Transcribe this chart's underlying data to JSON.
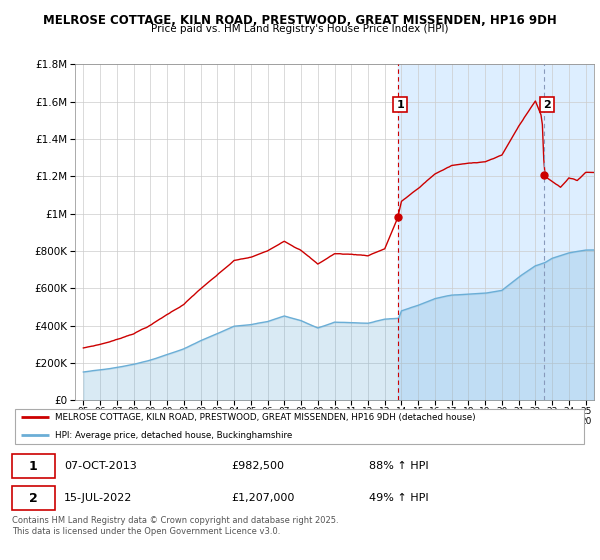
{
  "title1": "MELROSE COTTAGE, KILN ROAD, PRESTWOOD, GREAT MISSENDEN, HP16 9DH",
  "title2": "Price paid vs. HM Land Registry's House Price Index (HPI)",
  "hpi_color": "#6baed6",
  "price_color": "#cc0000",
  "vline1_color": "#cc0000",
  "vline2_color": "#aaaacc",
  "background_color": "#ffffff",
  "shaded_bg_color": "#ddeeff",
  "grid_color": "#cccccc",
  "legend_line1": "MELROSE COTTAGE, KILN ROAD, PRESTWOOD, GREAT MISSENDEN, HP16 9DH (detached house)",
  "legend_line2": "HPI: Average price, detached house, Buckinghamshire",
  "annotation1_label": "1",
  "annotation1_date": "07-OCT-2013",
  "annotation1_price": "£982,500",
  "annotation1_pct": "88% ↑ HPI",
  "annotation1_year": 2013.77,
  "annotation1_value": 982500,
  "annotation2_label": "2",
  "annotation2_date": "15-JUL-2022",
  "annotation2_price": "£1,207,000",
  "annotation2_pct": "49% ↑ HPI",
  "annotation2_year": 2022.54,
  "annotation2_value": 1207000,
  "footer": "Contains HM Land Registry data © Crown copyright and database right 2025.\nThis data is licensed under the Open Government Licence v3.0.",
  "ylim": [
    0,
    1800000
  ],
  "yticks": [
    0,
    200000,
    400000,
    600000,
    800000,
    1000000,
    1200000,
    1400000,
    1600000,
    1800000
  ],
  "ytick_labels": [
    "£0",
    "£200K",
    "£400K",
    "£600K",
    "£800K",
    "£1M",
    "£1.2M",
    "£1.4M",
    "£1.6M",
    "£1.8M"
  ]
}
